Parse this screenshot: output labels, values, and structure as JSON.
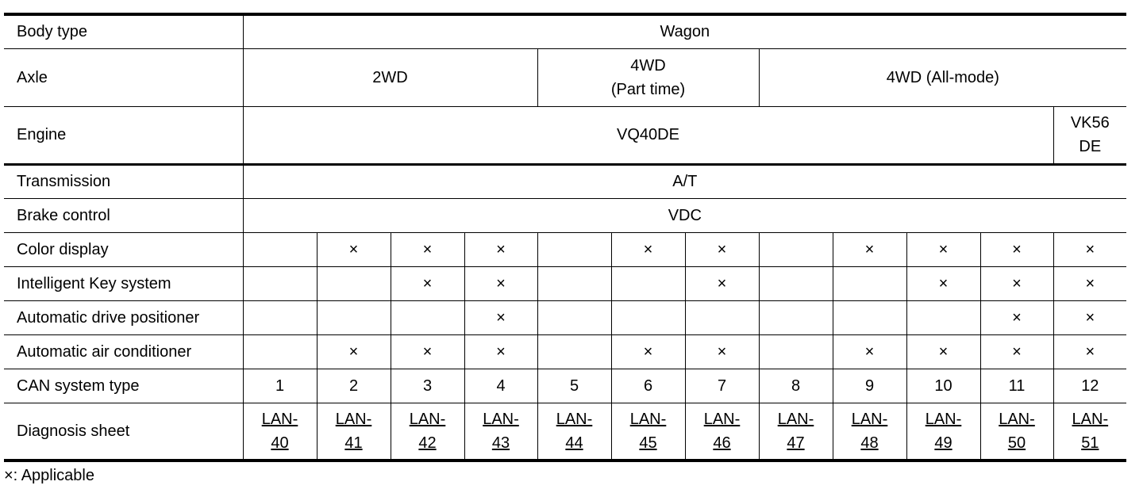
{
  "rows": {
    "body_type": {
      "label": "Body type",
      "value": "Wagon"
    },
    "axle": {
      "label": "Axle",
      "groups": [
        "2WD",
        "4WD\n(Part time)",
        "4WD (All-mode)"
      ]
    },
    "engine": {
      "label": "Engine",
      "groups": [
        "VQ40DE",
        "VK56\nDE"
      ]
    },
    "transmission": {
      "label": "Transmission",
      "value": "A/T"
    },
    "brake_control": {
      "label": "Brake control",
      "value": "VDC"
    },
    "color_display": {
      "label": "Color display",
      "cells": [
        "",
        "×",
        "×",
        "×",
        "",
        "×",
        "×",
        "",
        "×",
        "×",
        "×",
        "×"
      ]
    },
    "intelligent_key": {
      "label": "Intelligent Key system",
      "cells": [
        "",
        "",
        "×",
        "×",
        "",
        "",
        "×",
        "",
        "",
        "×",
        "×",
        "×"
      ]
    },
    "drive_positioner": {
      "label": "Automatic drive positioner",
      "cells": [
        "",
        "",
        "",
        "×",
        "",
        "",
        "",
        "",
        "",
        "",
        "×",
        "×"
      ]
    },
    "air_conditioner": {
      "label": "Automatic air conditioner",
      "cells": [
        "",
        "×",
        "×",
        "×",
        "",
        "×",
        "×",
        "",
        "×",
        "×",
        "×",
        "×"
      ]
    },
    "can_type": {
      "label": "CAN system type",
      "cells": [
        "1",
        "2",
        "3",
        "4",
        "5",
        "6",
        "7",
        "8",
        "9",
        "10",
        "11",
        "12"
      ]
    },
    "diagnosis": {
      "label": "Diagnosis sheet",
      "links": [
        "LAN-\n40",
        "LAN-\n41",
        "LAN-\n42",
        "LAN-\n43",
        "LAN-\n44",
        "LAN-\n45",
        "LAN-\n46",
        "LAN-\n47",
        "LAN-\n48",
        "LAN-\n49",
        "LAN-\n50",
        "LAN-\n51"
      ]
    }
  },
  "note": "×: Applicable"
}
